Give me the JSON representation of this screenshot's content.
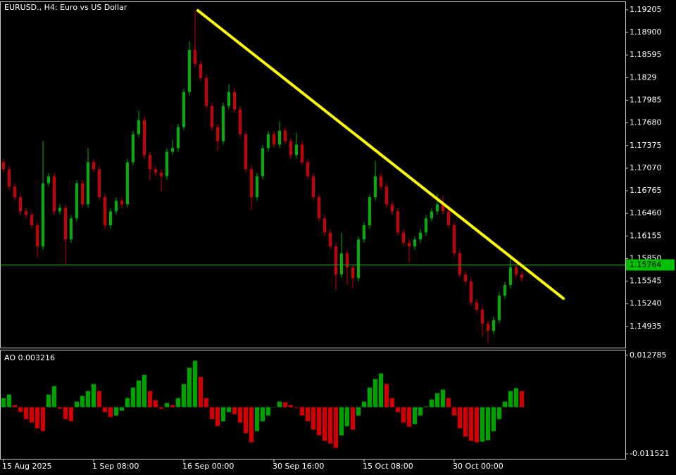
{
  "chart_data": [
    {
      "type": "candlestick",
      "title": "EURUSD., H4:  Euro vs US Dollar",
      "up_color": "#00b000",
      "down_color": "#d00000",
      "open": [
        1.1715,
        1.17055,
        1.16819,
        1.16677,
        1.16487,
        1.1644,
        1.16298,
        1.16014,
        1.16866,
        1.16961,
        1.16487,
        1.16534,
        1.16108,
        1.16392,
        1.16866,
        1.16582,
        1.1715,
        1.17055,
        1.16677,
        1.16298,
        1.16487,
        1.16629,
        1.16582,
        1.1715,
        1.17529,
        1.17718,
        1.17245,
        1.17055,
        1.17008,
        1.16961,
        1.17292,
        1.17339,
        1.17624,
        1.18097,
        1.18665,
        1.18476,
        1.18286,
        1.17908,
        1.17624,
        1.17434,
        1.17908,
        1.18097,
        1.1786,
        1.17529,
        1.17055,
        1.16677,
        1.16961,
        1.17339,
        1.17529,
        1.17387,
        1.17576,
        1.17434,
        1.17245,
        1.17387,
        1.1715,
        1.16961,
        1.16677,
        1.16392,
        1.16203,
        1.16014,
        1.15635,
        1.15919,
        1.1573,
        1.15587,
        1.16108,
        1.16298,
        1.16677,
        1.16961,
        1.16819,
        1.16582,
        1.16487,
        1.16203,
        1.16061,
        1.16014,
        1.16108,
        1.16203,
        1.16392,
        1.16487,
        1.16582,
        1.16487,
        1.16298,
        1.15919,
        1.15635,
        1.1554,
        1.15256,
        1.15161,
        1.14972,
        1.14877,
        1.15019,
        1.15351,
        1.15493,
        1.1573,
        1.15635
      ],
      "high": [
        1.17195,
        1.171,
        1.16864,
        1.16722,
        1.16532,
        1.16485,
        1.16343,
        1.17434,
        1.17006,
        1.17006,
        1.16579,
        1.16579,
        1.16437,
        1.16911,
        1.16911,
        1.1734,
        1.17195,
        1.171,
        1.16722,
        1.16532,
        1.16674,
        1.16674,
        1.17195,
        1.17574,
        1.1785,
        1.17763,
        1.1729,
        1.171,
        1.17053,
        1.17337,
        1.1745,
        1.17669,
        1.18142,
        1.1878,
        1.19196,
        1.18521,
        1.18331,
        1.17953,
        1.17669,
        1.17953,
        1.182,
        1.18142,
        1.17905,
        1.17574,
        1.171,
        1.17006,
        1.17384,
        1.17574,
        1.17574,
        1.177,
        1.17621,
        1.17479,
        1.1755,
        1.17432,
        1.17195,
        1.17006,
        1.16722,
        1.16437,
        1.16248,
        1.16059,
        1.162,
        1.15964,
        1.15775,
        1.16153,
        1.16343,
        1.16722,
        1.17169,
        1.17006,
        1.16864,
        1.16627,
        1.16532,
        1.16248,
        1.16106,
        1.16153,
        1.16248,
        1.16437,
        1.16532,
        1.1672,
        1.167,
        1.16532,
        1.16343,
        1.15964,
        1.1568,
        1.15585,
        1.15301,
        1.15206,
        1.15017,
        1.15064,
        1.15396,
        1.15538,
        1.1588,
        1.15775,
        1.1568
      ],
      "low": [
        1.1701,
        1.16774,
        1.16632,
        1.16442,
        1.16395,
        1.16253,
        1.15872,
        1.15969,
        1.16821,
        1.16442,
        1.16442,
        1.15777,
        1.16063,
        1.16347,
        1.16537,
        1.16537,
        1.1701,
        1.16632,
        1.16253,
        1.16253,
        1.16442,
        1.16537,
        1.16537,
        1.17105,
        1.17484,
        1.172,
        1.169,
        1.16963,
        1.1675,
        1.16916,
        1.17247,
        1.17294,
        1.17579,
        1.18052,
        1.18431,
        1.18241,
        1.17863,
        1.17579,
        1.173,
        1.17389,
        1.17863,
        1.17815,
        1.17484,
        1.1701,
        1.165,
        1.16632,
        1.16916,
        1.17294,
        1.17342,
        1.17342,
        1.17389,
        1.172,
        1.172,
        1.17105,
        1.16916,
        1.16632,
        1.16347,
        1.16158,
        1.15969,
        1.15426,
        1.1559,
        1.155,
        1.15445,
        1.15542,
        1.16063,
        1.16253,
        1.16632,
        1.16774,
        1.16537,
        1.16442,
        1.16158,
        1.16016,
        1.158,
        1.15969,
        1.16063,
        1.16158,
        1.16347,
        1.16442,
        1.16442,
        1.16253,
        1.15874,
        1.1559,
        1.15495,
        1.15211,
        1.15116,
        1.148,
        1.14716,
        1.14832,
        1.14974,
        1.15306,
        1.15448,
        1.1559,
        1.15542
      ],
      "close": [
        1.17055,
        1.16819,
        1.16677,
        1.16487,
        1.1644,
        1.16298,
        1.16014,
        1.16866,
        1.16961,
        1.16487,
        1.16534,
        1.16108,
        1.16392,
        1.16866,
        1.16582,
        1.1715,
        1.17055,
        1.16677,
        1.16298,
        1.16487,
        1.16629,
        1.16582,
        1.1715,
        1.17529,
        1.17718,
        1.17245,
        1.17055,
        1.17008,
        1.16961,
        1.17292,
        1.17339,
        1.17624,
        1.18097,
        1.18665,
        1.18476,
        1.18286,
        1.17908,
        1.17624,
        1.17434,
        1.17908,
        1.18097,
        1.1786,
        1.17529,
        1.17055,
        1.16677,
        1.16961,
        1.17339,
        1.17529,
        1.17387,
        1.17576,
        1.17434,
        1.17245,
        1.17387,
        1.1715,
        1.16961,
        1.16677,
        1.16392,
        1.16203,
        1.16014,
        1.15635,
        1.15919,
        1.1573,
        1.15587,
        1.16108,
        1.16298,
        1.16677,
        1.16961,
        1.16819,
        1.16582,
        1.16487,
        1.16203,
        1.16061,
        1.16014,
        1.16108,
        1.16203,
        1.16392,
        1.16487,
        1.16582,
        1.16487,
        1.16298,
        1.15919,
        1.15635,
        1.1554,
        1.15256,
        1.15161,
        1.14972,
        1.14877,
        1.15019,
        1.15351,
        1.15493,
        1.1573,
        1.15635,
        1.15587
      ],
      "xlim": [
        -0.625,
        110.375
      ],
      "xticks": [
        {
          "value": 0,
          "label": "15 Aug 2025"
        },
        {
          "value": 16,
          "label": "1 Sep 08:00"
        },
        {
          "value": 32,
          "label": "16 Sep 00:00"
        },
        {
          "value": 48,
          "label": "30 Sep 16:00"
        },
        {
          "value": 64,
          "label": "15 Oct 08:00"
        },
        {
          "value": 80,
          "label": "30 Oct 00:00"
        }
      ],
      "ylim": [
        1.14649,
        1.19309
      ],
      "yticks": [
        1.19205,
        {
          "value": 1.189,
          "label": "1.18900"
        },
        1.18595,
        1.1829,
        1.17985,
        {
          "value": 1.1768,
          "label": "1.17680"
        },
        1.17375,
        {
          "value": 1.1707,
          "label": "1.17070"
        },
        1.16765,
        {
          "value": 1.1646,
          "label": "1.16460"
        },
        1.16155,
        {
          "value": 1.1585,
          "label": "1.15850"
        },
        1.15545,
        {
          "value": 1.1524,
          "label": "1.15240"
        },
        1.14935
      ],
      "last_price": 1.15764,
      "last_price_color": "#00c000",
      "trendline": {
        "x": [
          34.5,
          99.4
        ],
        "y": [
          1.19196,
          1.15312
        ],
        "color": "#ffff00"
      }
    },
    {
      "type": "bar",
      "title": "AO 0.003216",
      "up_color": "#00a000",
      "down_color": "#d00000",
      "values": [
        0.00226,
        0.00312,
        0.00052,
        -0.00122,
        -0.00295,
        -0.00382,
        -0.00521,
        -0.0059,
        0.00312,
        0.00521,
        -0.00035,
        -0.00295,
        -0.00347,
        0.00139,
        0.00278,
        0.00399,
        0.00573,
        0.00399,
        -0.00122,
        -0.00243,
        -0.00208,
        -0.00087,
        0.00226,
        0.00486,
        0.0066,
        0.00799,
        0.00399,
        0.00174,
        -0.00035,
        0.00104,
        0.00052,
        0.00226,
        0.00573,
        0.00972,
        0.01146,
        0.00746,
        0.00226,
        -0.00295,
        -0.00469,
        -0.00347,
        -0.00122,
        -0.00174,
        -0.00382,
        -0.00642,
        -0.00868,
        -0.0059,
        -0.00347,
        -0.00208,
        0,
        0.00139,
        0.00122,
        0.00052,
        -0.00017,
        -0.00208,
        -0.00347,
        -0.00556,
        -0.00694,
        -0.00833,
        -0.00903,
        -0.01007,
        -0.00694,
        -0.00469,
        -0.00556,
        -0.00208,
        0.00139,
        0.00486,
        0.00694,
        0.00833,
        0.00573,
        0.00226,
        -0.00122,
        -0.00382,
        -0.00486,
        -0.00417,
        -0.00208,
        0.00017,
        0.00191,
        0.00347,
        0.00434,
        0.00226,
        -0.00208,
        -0.00521,
        -0.00729,
        -0.00833,
        -0.00868,
        -0.00851,
        -0.00816,
        -0.0059,
        -0.00295,
        0.00139,
        0.00399,
        0.00469,
        0.00399
      ],
      "ylim": [
        -0.01274,
        0.014
      ],
      "yticks": [
        0.012785,
        -0.011521
      ]
    }
  ]
}
